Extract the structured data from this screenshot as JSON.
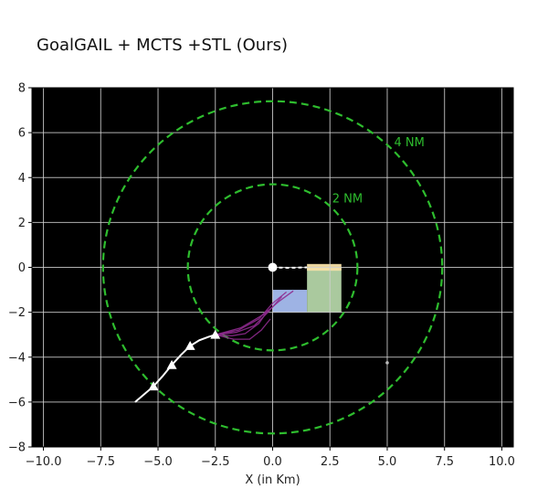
{
  "chart_data": {
    "type": "scatter",
    "title": "GoalGAIL + MCTS +STL (Ours)",
    "xlabel": "X (in Km)",
    "ylabel": "",
    "xlim": [
      -10.5,
      10.5
    ],
    "ylim": [
      -8,
      8
    ],
    "xticks": [
      -10.0,
      -7.5,
      -5.0,
      -2.5,
      0.0,
      2.5,
      5.0,
      7.5,
      10.0
    ],
    "xtick_labels": [
      "−10.0",
      "−7.5",
      "−5.0",
      "−2.5",
      "0.0",
      "2.5",
      "5.0",
      "7.5",
      "10.0"
    ],
    "yticks": [
      -8,
      -6,
      -4,
      -2,
      0,
      2,
      4,
      6,
      8
    ],
    "ytick_labels": [
      "−8",
      "−6",
      "−4",
      "−2",
      "0",
      "2",
      "4",
      "6",
      "8"
    ],
    "grid": true,
    "background": "#000000",
    "grid_color": "#d0d0d0",
    "rings": [
      {
        "label": "2 NM",
        "radius": 3.7,
        "color": "#2ebd2e",
        "label_x": 2.6,
        "label_y": 2.9
      },
      {
        "label": "4 NM",
        "radius": 7.4,
        "color": "#2ebd2e",
        "label_x": 5.3,
        "label_y": 5.4
      }
    ],
    "regions": [
      {
        "x0": 0.0,
        "x1": 1.5,
        "y0": -2.0,
        "y1": -1.0,
        "color": "#a7bdf0"
      },
      {
        "x0": 1.5,
        "x1": 3.0,
        "y0": -2.0,
        "y1": 0.0,
        "color": "#b3d4a6"
      },
      {
        "x0": 1.5,
        "x1": 3.0,
        "y0": -0.15,
        "y1": 0.15,
        "color": "#f7e0a6"
      }
    ],
    "runway_origin": {
      "x": 0.0,
      "y": 0.0,
      "color": "#ffffff"
    },
    "runway_path": {
      "x": [
        0.0,
        0.7,
        1.5
      ],
      "y": [
        0.0,
        -0.02,
        0.0
      ],
      "color": "#ffffff"
    },
    "trajectory": {
      "x": [
        -6.0,
        -5.6,
        -5.2,
        -4.8,
        -4.4,
        -4.0,
        -3.6,
        -3.2,
        -2.8,
        -2.5
      ],
      "y": [
        -6.0,
        -5.65,
        -5.3,
        -4.85,
        -4.35,
        -3.9,
        -3.5,
        -3.25,
        -3.1,
        -3.0
      ],
      "color": "#ffffff"
    },
    "markers": {
      "x": [
        -5.2,
        -4.4,
        -3.6,
        -2.5
      ],
      "y": [
        -5.3,
        -4.35,
        -3.5,
        -3.0
      ],
      "symbol": "triangle",
      "color": "#ffffff"
    },
    "planning_branches": {
      "color": "#8e2a8e",
      "lines": [
        {
          "x": [
            -2.5,
            -1.6,
            -0.8,
            -0.2,
            0.4
          ],
          "y": [
            -3.0,
            -2.9,
            -2.6,
            -2.0,
            -1.3
          ]
        },
        {
          "x": [
            -2.5,
            -1.5,
            -0.6,
            0.0,
            0.6
          ],
          "y": [
            -3.0,
            -2.8,
            -2.3,
            -1.6,
            -1.1
          ]
        },
        {
          "x": [
            -2.5,
            -1.7,
            -1.0,
            -0.5,
            -0.1
          ],
          "y": [
            -3.0,
            -3.2,
            -3.2,
            -2.8,
            -2.3
          ]
        },
        {
          "x": [
            -2.5,
            -1.4,
            -0.4,
            0.3,
            0.9
          ],
          "y": [
            -3.0,
            -2.7,
            -2.1,
            -1.5,
            -1.05
          ]
        },
        {
          "x": [
            -2.5,
            -1.8,
            -1.2,
            -0.6,
            -0.2
          ],
          "y": [
            -3.0,
            -3.05,
            -2.95,
            -2.5,
            -1.9
          ]
        }
      ]
    },
    "stray_point": {
      "x": 5.0,
      "y": -4.25,
      "color": "#bbbbbb"
    }
  }
}
